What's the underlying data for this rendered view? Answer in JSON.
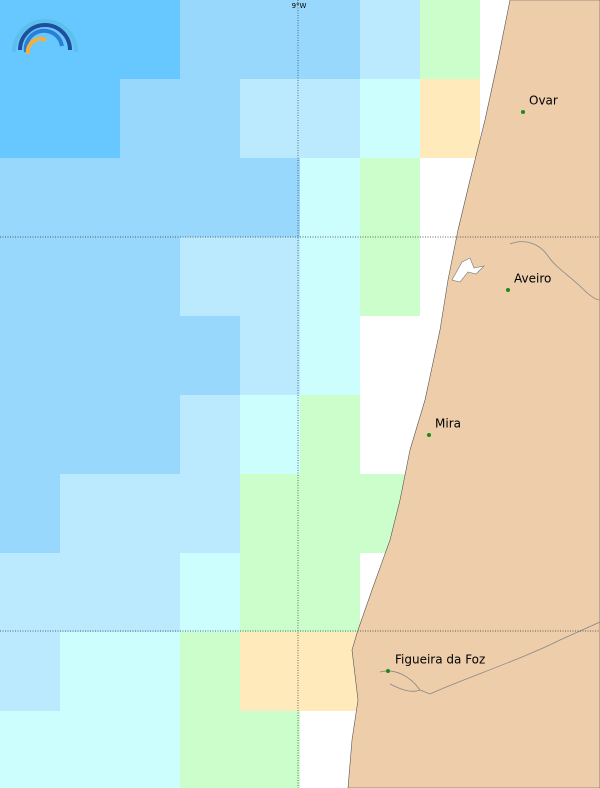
{
  "graticule": {
    "label": "9°W"
  },
  "places": [
    {
      "name": "Ovar"
    },
    {
      "name": "Aveiro"
    },
    {
      "name": "Mira"
    },
    {
      "name": "Figueira da Foz"
    }
  ]
}
